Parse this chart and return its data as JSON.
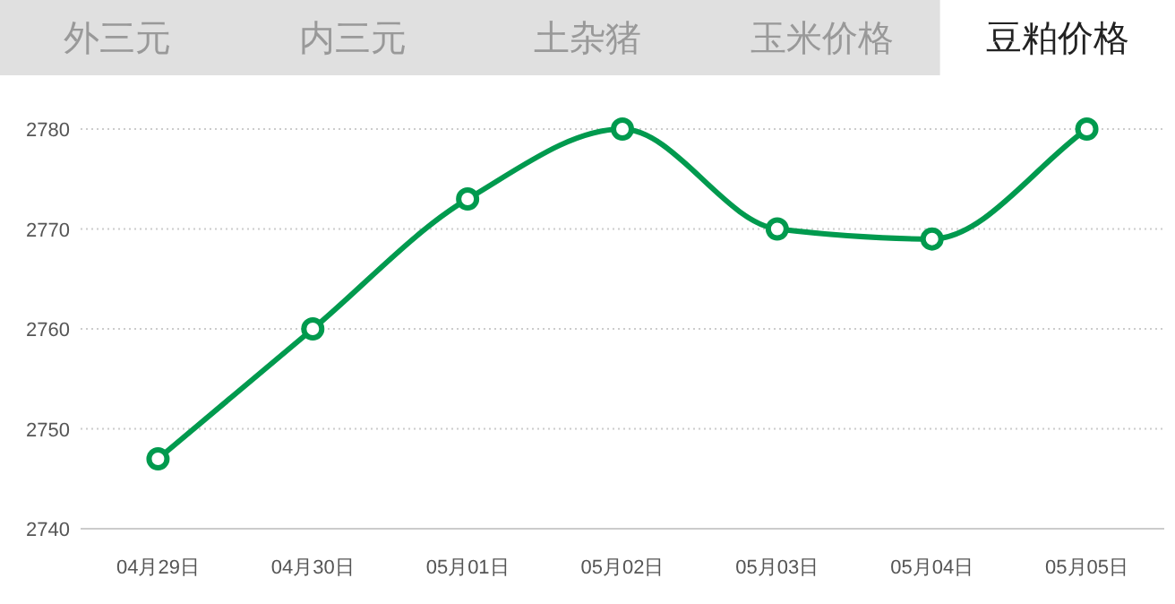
{
  "chart_data": {
    "type": "line",
    "title": "豆粕价格",
    "annotations": [
      "外三元",
      "内三元",
      "土杂猪",
      "玉米价格"
    ],
    "categories": [
      "04月29日",
      "04月30日",
      "05月01日",
      "05月02日",
      "05月03日",
      "05月04日",
      "05月05日"
    ],
    "series": [
      {
        "color": "#009a4e",
        "values": [
          2747,
          2760,
          2773,
          2780,
          2770,
          2769,
          2780
        ]
      }
    ],
    "ylim": [
      2740,
      2780
    ],
    "yticks": [
      2740,
      2750,
      2760,
      2770,
      2780
    ],
    "grid": "y",
    "marker": "circle",
    "line_style": "solid"
  }
}
